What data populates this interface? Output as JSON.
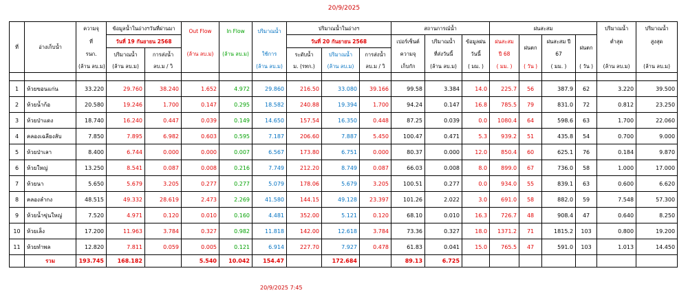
{
  "top_date": "20/9/2025",
  "bottom_timestamp": "20/9/2025 7:45",
  "colors": {
    "red": "#e00000",
    "green": "#00a000",
    "blue": "#0070c0"
  },
  "header": {
    "no": "ที่",
    "reservoir": "อ่างเก็บน้ำ",
    "capacity": [
      "ความจุ",
      "ที่",
      "รนก.",
      "(ล้าน ลบ.ม)"
    ],
    "yesterday_title": "ข้อมูลน้ำในอ่างฯวันที่ผ่านมา",
    "yesterday_date": "วันที่ 19 กันยายน 2568",
    "y_volume": [
      "ปริมาณน้ำ",
      "(ล้าน ลบ.ม)"
    ],
    "y_release": [
      "การส่งน้ำ",
      "ลบ.ม / วิ"
    ],
    "outflow": [
      "Out Flow",
      "(ล้าน ลบ.ม)"
    ],
    "inflow": [
      "In Flow",
      "(ล้าน ลบ.ม)"
    ],
    "usable": [
      "ปริมาณน้ำ",
      "ใช้การ",
      "(ล้าน ลบ.ม)"
    ],
    "today_title": "ปริมาณน้ำในอ่างฯ",
    "today_date": "วันที่ 20 กันยายน 2568",
    "t_level": [
      "ระดับน้ำ",
      "ม. (รทก.)"
    ],
    "t_volume": [
      "ปริมาณน้ำ",
      "(ล้าน ลบ.ม)"
    ],
    "t_release": [
      "การส่งน้ำ",
      "ลบ.ม / วิ"
    ],
    "status_title": "สถานการณ์น้ำ",
    "percent": [
      "เปอร์เซ็นต์",
      "ความจุ",
      "เก็บกัก"
    ],
    "sent_today": [
      "ปริมาณน้ำ",
      "ที่ส่งวันนี้",
      "(ล้าน ลบ.ม)"
    ],
    "rain_today": [
      "ข้อมูลฝน",
      "วันนี้",
      "( มม. )"
    ],
    "cum_title": "ฝนสะสม",
    "rain68": [
      "ฝนสะสม",
      "ปี 68",
      "( มม. )"
    ],
    "raindays68": [
      "ฝนตก",
      "( วัน )"
    ],
    "rain67": [
      "ฝนสะสม ปี",
      "67",
      "( มม. )"
    ],
    "raindays67": [
      "ฝนตก",
      "( วัน )"
    ],
    "min": [
      "ปริมาณน้ำ",
      "ต่ำสุด",
      "(ล้าน ลบ.ม)"
    ],
    "max": [
      "ปริมาณน้ำ",
      "สูงสุด",
      "(ล้าน ลบ.ม)"
    ]
  },
  "rows": [
    {
      "no": "1",
      "name": "ห้วยขอนแก่น",
      "cap": "33.220",
      "yvol": "29.760",
      "yrel": "38.240",
      "out": "1.652",
      "in": "4.972",
      "use": "29.860",
      "lvl": "216.50",
      "tvol": "33.080",
      "trel": "39.166",
      "pct": "99.58",
      "sent": "3.384",
      "rain": "14.0",
      "r68": "225.7",
      "d68": "56",
      "r67": "387.9",
      "d67": "62",
      "min": "3.220",
      "max": "39.500"
    },
    {
      "no": "2",
      "name": "ห้วยน้ำก้อ",
      "cap": "20.580",
      "yvol": "19.246",
      "yrel": "1.700",
      "out": "0.147",
      "in": "0.295",
      "use": "18.582",
      "lvl": "240.88",
      "tvol": "19.394",
      "trel": "1.700",
      "pct": "94.24",
      "sent": "0.147",
      "rain": "16.8",
      "r68": "785.5",
      "d68": "79",
      "r67": "831.0",
      "d67": "72",
      "min": "0.812",
      "max": "23.250"
    },
    {
      "no": "3",
      "name": "ห้วยป่าแดง",
      "cap": "18.740",
      "yvol": "16.240",
      "yrel": "0.447",
      "out": "0.039",
      "in": "0.149",
      "use": "14.650",
      "lvl": "157.54",
      "tvol": "16.350",
      "trel": "0.448",
      "pct": "87.25",
      "sent": "0.039",
      "rain": "0.0",
      "r68": "1080.4",
      "d68": "64",
      "r67": "598.6",
      "d67": "63",
      "min": "1.700",
      "max": "22.060"
    },
    {
      "no": "4",
      "name": "คลองเฉลียงลับ",
      "cap": "7.850",
      "yvol": "7.895",
      "yrel": "6.982",
      "out": "0.603",
      "in": "0.595",
      "use": "7.187",
      "lvl": "206.60",
      "tvol": "7.887",
      "trel": "5.450",
      "pct": "100.47",
      "sent": "0.471",
      "rain": "5.3",
      "r68": "939.2",
      "d68": "51",
      "r67": "435.8",
      "d67": "54",
      "min": "0.700",
      "max": "9.000"
    },
    {
      "no": "5",
      "name": "ห้วยป่าเลา",
      "cap": "8.400",
      "yvol": "6.744",
      "yrel": "0.000",
      "out": "0.000",
      "in": "0.007",
      "use": "6.567",
      "lvl": "173.80",
      "tvol": "6.751",
      "trel": "0.000",
      "pct": "80.37",
      "sent": "0.000",
      "rain": "12.0",
      "r68": "850.4",
      "d68": "60",
      "r67": "625.1",
      "d67": "76",
      "min": "0.184",
      "max": "9.870"
    },
    {
      "no": "6",
      "name": "ห้วยใหญ่",
      "cap": "13.250",
      "yvol": "8.541",
      "yrel": "0.087",
      "out": "0.008",
      "in": "0.216",
      "use": "7.749",
      "lvl": "212.20",
      "tvol": "8.749",
      "trel": "0.087",
      "pct": "66.03",
      "sent": "0.008",
      "rain": "8.0",
      "r68": "899.0",
      "d68": "67",
      "r67": "736.0",
      "d67": "58",
      "min": "1.000",
      "max": "17.000"
    },
    {
      "no": "7",
      "name": "ห้วยนา",
      "cap": "5.650",
      "yvol": "5.679",
      "yrel": "3.205",
      "out": "0.277",
      "in": "0.277",
      "use": "5.079",
      "lvl": "178.06",
      "tvol": "5.679",
      "trel": "3.205",
      "pct": "100.51",
      "sent": "0.277",
      "rain": "0.0",
      "r68": "934.0",
      "d68": "55",
      "r67": "839.1",
      "d67": "63",
      "min": "0.600",
      "max": "6.620"
    },
    {
      "no": "8",
      "name": "คลองลำกง",
      "cap": "48.515",
      "yvol": "49.332",
      "yrel": "28.619",
      "out": "2.473",
      "in": "2.269",
      "use": "41.580",
      "lvl": "144.15",
      "tvol": "49.128",
      "trel": "23.397",
      "pct": "101.26",
      "sent": "2.022",
      "rain": "3.0",
      "r68": "691.0",
      "d68": "58",
      "r67": "882.0",
      "d67": "59",
      "min": "7.548",
      "max": "57.300"
    },
    {
      "no": "9",
      "name": "ห้วยน้ำขุ่นใหญ่",
      "cap": "7.520",
      "yvol": "4.971",
      "yrel": "0.120",
      "out": "0.010",
      "in": "0.160",
      "use": "4.481",
      "lvl": "352.00",
      "tvol": "5.121",
      "trel": "0.120",
      "pct": "68.10",
      "sent": "0.010",
      "rain": "16.3",
      "r68": "726.7",
      "d68": "48",
      "r67": "908.4",
      "d67": "47",
      "min": "0.640",
      "max": "8.250"
    },
    {
      "no": "10",
      "name": "ห้วยเล็ง",
      "cap": "17.200",
      "yvol": "11.963",
      "yrel": "3.784",
      "out": "0.327",
      "in": "0.982",
      "use": "11.818",
      "lvl": "142.00",
      "tvol": "12.618",
      "trel": "3.784",
      "pct": "73.36",
      "sent": "0.327",
      "rain": "18.0",
      "r68": "1371.2",
      "d68": "71",
      "r67": "1815.2",
      "d67": "103",
      "min": "0.800",
      "max": "19.200"
    },
    {
      "no": "11",
      "name": "ห้วยทำพล",
      "cap": "12.820",
      "yvol": "7.811",
      "yrel": "0.059",
      "out": "0.005",
      "in": "0.121",
      "use": "6.914",
      "lvl": "227.70",
      "tvol": "7.927",
      "trel": "0.478",
      "pct": "61.83",
      "sent": "0.041",
      "rain": "15.0",
      "r68": "765.5",
      "d68": "47",
      "r67": "591.0",
      "d67": "103",
      "min": "1.013",
      "max": "14.450"
    }
  ],
  "total": {
    "label": "รวม",
    "cap": "193.745",
    "yvol": "168.182",
    "out": "5.540",
    "in": "10.042",
    "use": "154.47",
    "tvol": "172.684",
    "pct": "89.13",
    "sent": "6.725"
  }
}
